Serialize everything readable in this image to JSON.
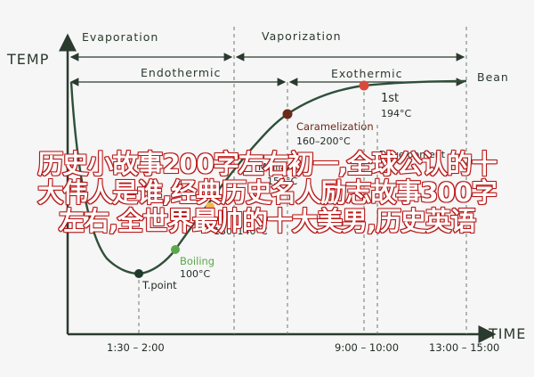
{
  "axes": {
    "y_label": "TEMP",
    "x_label": "TIME",
    "x_ticks": [
      "1:30 – 2:00",
      "9:00 – 10:00",
      "13:00 – 15:00"
    ]
  },
  "phases": {
    "evaporation": "Evaporation",
    "vaporization": "Vaporization",
    "endothermic": "Endothermic",
    "exothermic": "Exothermic"
  },
  "end_label": "Bean",
  "points": {
    "first_crack": {
      "label": "1st",
      "temp": "194°C",
      "color": "#d94a3c"
    },
    "caramelization": {
      "label": "Caramelization",
      "temp": "160–200°C",
      "color": "#6b2a1a"
    },
    "development": {
      "label": "Development"
    },
    "mid_label_a": {
      "label": "Maillard",
      "temp": "154°C"
    },
    "mid_point": {
      "temp": "130–140°C",
      "color": "#f2b84b"
    },
    "boiling": {
      "label": "Boiling",
      "temp": "100°C",
      "color": "#5aa84a"
    },
    "turning_point": {
      "label": "T.point",
      "color": "#1f3a2a"
    }
  },
  "overlay_lines": [
    "历史小故事200字左右初一,全球公认的十",
    "大伟人是谁,经典历史名人励志故事300字",
    "左右,全世界最帅的十大美男,历史英语"
  ]
}
